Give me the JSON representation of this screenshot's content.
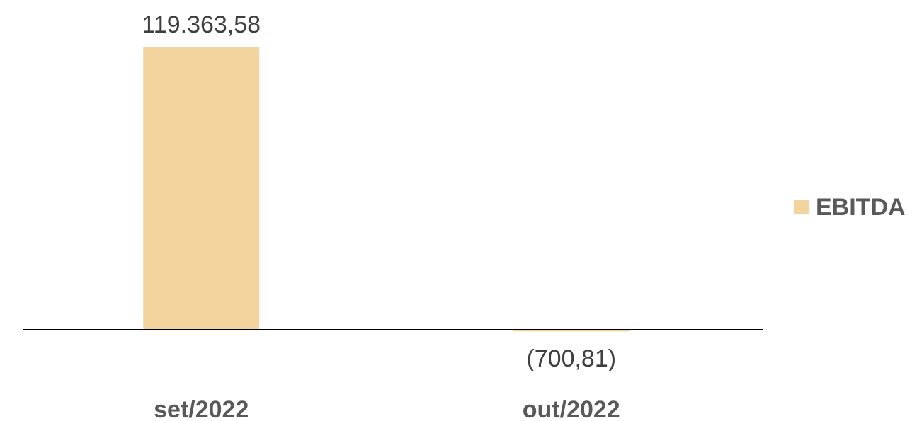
{
  "colors": {
    "bar": "#F4D49E",
    "axis": "#000000",
    "text": "#595959"
  },
  "chart_data": {
    "type": "bar",
    "categories": [
      "set/2022",
      "out/2022"
    ],
    "series": [
      {
        "name": "EBITDA",
        "values": [
          119363.58,
          -700.81
        ],
        "labels": [
          "119.363,58",
          "(700,81)"
        ]
      }
    ],
    "legend": "right",
    "grid": false
  }
}
